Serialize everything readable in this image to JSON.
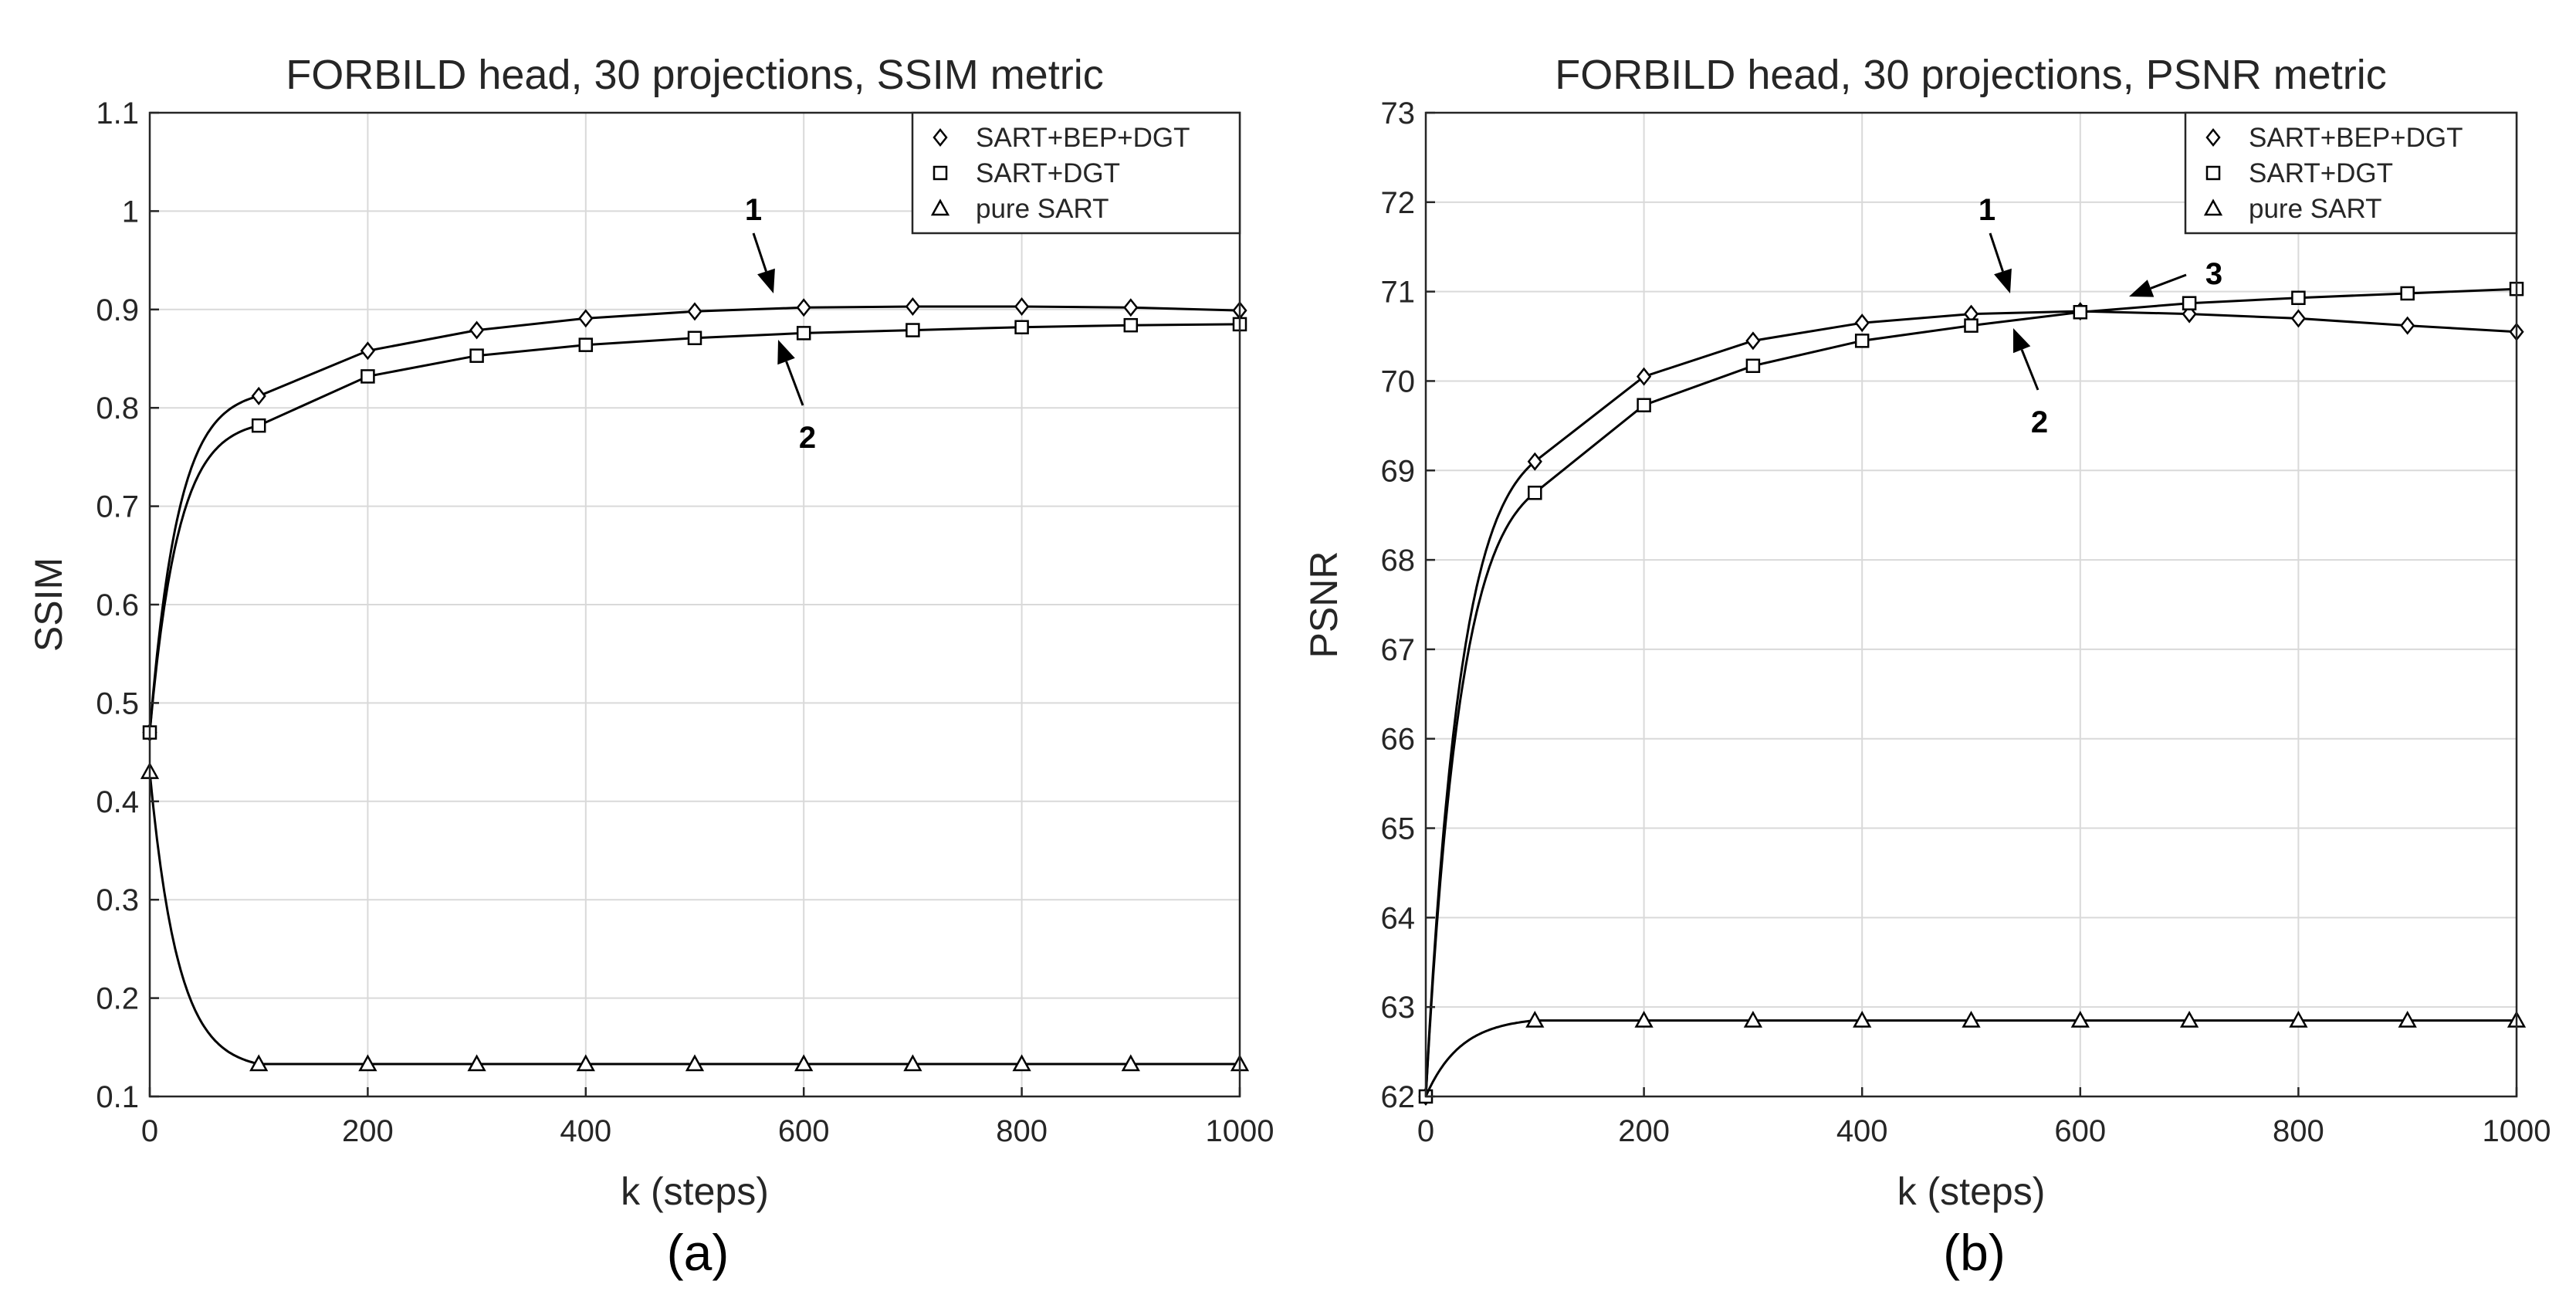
{
  "chart_data": [
    {
      "type": "line",
      "title": "FORBILD head, 30 projections, SSIM metric",
      "xlabel": "k (steps)",
      "ylabel": "SSIM",
      "panel_label": "(a)",
      "xlim": [
        0,
        1000
      ],
      "ylim": [
        0.1,
        1.1
      ],
      "grid": true,
      "legend_position": "top-right",
      "xticks": [
        0,
        200,
        400,
        600,
        800,
        1000
      ],
      "xtick_labels": [
        "0",
        "200",
        "400",
        "600",
        "800",
        "1000"
      ],
      "yticks": [
        0.1,
        0.2,
        0.3,
        0.4,
        0.5,
        0.6,
        0.7,
        0.8,
        0.9,
        1.0,
        1.1
      ],
      "ytick_labels": [
        "0.1",
        "0.2",
        "0.3",
        "0.4",
        "0.5",
        "0.6",
        "0.7",
        "0.8",
        "0.9",
        "1",
        "1.1"
      ],
      "series": [
        {
          "name": "SART+BEP+DGT",
          "marker": "diamond",
          "x": [
            0,
            100,
            200,
            300,
            400,
            500,
            600,
            700,
            800,
            900,
            1000
          ],
          "values": [
            0.47,
            0.812,
            0.858,
            0.879,
            0.891,
            0.898,
            0.902,
            0.903,
            0.903,
            0.902,
            0.899
          ]
        },
        {
          "name": "SART+DGT",
          "marker": "square",
          "x": [
            0,
            100,
            200,
            300,
            400,
            500,
            600,
            700,
            800,
            900,
            1000
          ],
          "values": [
            0.47,
            0.782,
            0.832,
            0.853,
            0.864,
            0.871,
            0.876,
            0.879,
            0.882,
            0.884,
            0.885
          ]
        },
        {
          "name": "pure SART",
          "marker": "triangle",
          "x": [
            0,
            100,
            200,
            300,
            400,
            500,
            600,
            700,
            800,
            900,
            1000
          ],
          "values": [
            0.43,
            0.133,
            0.133,
            0.133,
            0.133,
            0.133,
            0.133,
            0.133,
            0.133,
            0.133,
            0.133
          ]
        }
      ],
      "annotations": [
        {
          "text": "1",
          "x": 570,
          "y": 0.92
        },
        {
          "text": "2",
          "x": 580,
          "y": 0.86
        }
      ]
    },
    {
      "type": "line",
      "title": "FORBILD head, 30 projections, PSNR metric",
      "xlabel": "k (steps)",
      "ylabel": "PSNR",
      "panel_label": "(b)",
      "xlim": [
        0,
        1000
      ],
      "ylim": [
        62,
        73
      ],
      "grid": true,
      "legend_position": "top-right",
      "xticks": [
        0,
        200,
        400,
        600,
        800,
        1000
      ],
      "xtick_labels": [
        "0",
        "200",
        "400",
        "600",
        "800",
        "1000"
      ],
      "yticks": [
        62,
        63,
        64,
        65,
        66,
        67,
        68,
        69,
        70,
        71,
        72,
        73
      ],
      "ytick_labels": [
        "62",
        "63",
        "64",
        "65",
        "66",
        "67",
        "68",
        "69",
        "70",
        "71",
        "72",
        "73"
      ],
      "series": [
        {
          "name": "SART+BEP+DGT",
          "marker": "diamond",
          "x": [
            0,
            100,
            200,
            300,
            400,
            500,
            600,
            700,
            800,
            900,
            1000
          ],
          "values": [
            62.0,
            69.1,
            70.05,
            70.45,
            70.65,
            70.75,
            70.78,
            70.75,
            70.7,
            70.62,
            70.55
          ]
        },
        {
          "name": "SART+DGT",
          "marker": "square",
          "x": [
            0,
            100,
            200,
            300,
            400,
            500,
            600,
            700,
            800,
            900,
            1000
          ],
          "values": [
            62.0,
            68.75,
            69.73,
            70.17,
            70.45,
            70.62,
            70.77,
            70.87,
            70.93,
            70.98,
            71.03
          ]
        },
        {
          "name": "pure SART",
          "marker": "triangle",
          "x": [
            0,
            100,
            200,
            300,
            400,
            500,
            600,
            700,
            800,
            900,
            1000
          ],
          "values": [
            62.0,
            62.85,
            62.85,
            62.85,
            62.85,
            62.85,
            62.85,
            62.85,
            62.85,
            62.85,
            62.85
          ]
        }
      ],
      "annotations": [
        {
          "text": "1",
          "x": 510,
          "y": 71.7
        },
        {
          "text": "2",
          "x": 560,
          "y": 70.3
        },
        {
          "text": "3",
          "x": 700,
          "y": 71.1
        }
      ]
    }
  ]
}
